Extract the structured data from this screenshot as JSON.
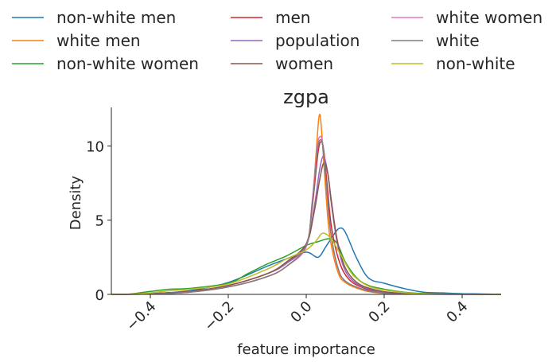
{
  "chart_data": {
    "type": "line",
    "title": "zgpa",
    "xlabel": "feature importance",
    "ylabel": "Density",
    "xlim": [
      -0.5,
      0.5
    ],
    "ylim": [
      0,
      12.6
    ],
    "x_ticks": [
      {
        "value": -0.4,
        "label": "−0.4"
      },
      {
        "value": -0.2,
        "label": "−0.2"
      },
      {
        "value": 0.0,
        "label": "0.0"
      },
      {
        "value": 0.2,
        "label": "0.2"
      },
      {
        "value": 0.4,
        "label": "0.4"
      }
    ],
    "y_ticks": [
      {
        "value": 0,
        "label": "0"
      },
      {
        "value": 5,
        "label": "5"
      },
      {
        "value": 10,
        "label": "10"
      }
    ],
    "x_tick_rotation": 45,
    "legend_position": "top",
    "legend_columns": 3,
    "grid": false,
    "series": [
      {
        "name": "non-white men",
        "color": "#1f77b4",
        "points": [
          [
            -0.5,
            0
          ],
          [
            -0.4,
            0.05
          ],
          [
            -0.3,
            0.25
          ],
          [
            -0.2,
            0.8
          ],
          [
            -0.1,
            1.9
          ],
          [
            -0.05,
            2.4
          ],
          [
            0.0,
            2.85
          ],
          [
            0.03,
            2.5
          ],
          [
            0.05,
            3.2
          ],
          [
            0.07,
            4.0
          ],
          [
            0.085,
            4.45
          ],
          [
            0.1,
            4.2
          ],
          [
            0.13,
            2.4
          ],
          [
            0.16,
            1.1
          ],
          [
            0.2,
            0.75
          ],
          [
            0.25,
            0.4
          ],
          [
            0.3,
            0.15
          ],
          [
            0.35,
            0.1
          ],
          [
            0.4,
            0.05
          ],
          [
            0.45,
            0.03
          ],
          [
            0.5,
            0
          ]
        ]
      },
      {
        "name": "white men",
        "color": "#ff7f0e",
        "points": [
          [
            -0.5,
            0
          ],
          [
            -0.4,
            0.03
          ],
          [
            -0.3,
            0.15
          ],
          [
            -0.2,
            0.5
          ],
          [
            -0.1,
            1.2
          ],
          [
            -0.05,
            1.9
          ],
          [
            0.0,
            3.3
          ],
          [
            0.015,
            6.0
          ],
          [
            0.028,
            10.5
          ],
          [
            0.033,
            12.0
          ],
          [
            0.038,
            11.5
          ],
          [
            0.05,
            7.0
          ],
          [
            0.06,
            4.0
          ],
          [
            0.08,
            1.6
          ],
          [
            0.1,
            0.8
          ],
          [
            0.15,
            0.25
          ],
          [
            0.2,
            0.07
          ],
          [
            0.25,
            0.02
          ],
          [
            0.5,
            0
          ]
        ]
      },
      {
        "name": "non-white women",
        "color": "#2ca02c",
        "points": [
          [
            -0.5,
            0
          ],
          [
            -0.45,
            0.03
          ],
          [
            -0.4,
            0.2
          ],
          [
            -0.35,
            0.35
          ],
          [
            -0.3,
            0.4
          ],
          [
            -0.2,
            0.75
          ],
          [
            -0.15,
            1.4
          ],
          [
            -0.1,
            2.05
          ],
          [
            -0.05,
            2.6
          ],
          [
            0.0,
            3.3
          ],
          [
            0.03,
            3.55
          ],
          [
            0.06,
            3.75
          ],
          [
            0.08,
            3.4
          ],
          [
            0.1,
            2.2
          ],
          [
            0.13,
            1.1
          ],
          [
            0.16,
            0.6
          ],
          [
            0.2,
            0.35
          ],
          [
            0.25,
            0.15
          ],
          [
            0.3,
            0.06
          ],
          [
            0.4,
            0.02
          ],
          [
            0.5,
            0
          ]
        ]
      },
      {
        "name": "men",
        "color": "#d62728",
        "points": [
          [
            -0.5,
            0
          ],
          [
            -0.4,
            0.05
          ],
          [
            -0.3,
            0.2
          ],
          [
            -0.2,
            0.6
          ],
          [
            -0.1,
            1.4
          ],
          [
            -0.05,
            2.1
          ],
          [
            0.0,
            3.4
          ],
          [
            0.015,
            5.8
          ],
          [
            0.03,
            9.5
          ],
          [
            0.038,
            10.3
          ],
          [
            0.045,
            9.7
          ],
          [
            0.055,
            7.0
          ],
          [
            0.065,
            4.5
          ],
          [
            0.085,
            2.2
          ],
          [
            0.11,
            1.0
          ],
          [
            0.15,
            0.4
          ],
          [
            0.2,
            0.12
          ],
          [
            0.25,
            0.04
          ],
          [
            0.5,
            0
          ]
        ]
      },
      {
        "name": "population",
        "color": "#9467bd",
        "points": [
          [
            -0.5,
            0
          ],
          [
            -0.4,
            0.05
          ],
          [
            -0.3,
            0.2
          ],
          [
            -0.2,
            0.6
          ],
          [
            -0.1,
            1.4
          ],
          [
            -0.05,
            2.1
          ],
          [
            0.0,
            3.3
          ],
          [
            0.02,
            5.8
          ],
          [
            0.035,
            8.5
          ],
          [
            0.045,
            9.3
          ],
          [
            0.055,
            8.2
          ],
          [
            0.065,
            6.0
          ],
          [
            0.08,
            3.4
          ],
          [
            0.1,
            1.6
          ],
          [
            0.13,
            0.7
          ],
          [
            0.17,
            0.3
          ],
          [
            0.22,
            0.1
          ],
          [
            0.3,
            0.03
          ],
          [
            0.5,
            0
          ]
        ]
      },
      {
        "name": "women",
        "color": "#8c564b",
        "points": [
          [
            -0.5,
            0
          ],
          [
            -0.4,
            0.05
          ],
          [
            -0.3,
            0.2
          ],
          [
            -0.2,
            0.6
          ],
          [
            -0.1,
            1.4
          ],
          [
            -0.05,
            2.2
          ],
          [
            0.0,
            3.4
          ],
          [
            0.02,
            5.5
          ],
          [
            0.035,
            7.8
          ],
          [
            0.045,
            8.85
          ],
          [
            0.055,
            8.2
          ],
          [
            0.065,
            6.2
          ],
          [
            0.08,
            3.6
          ],
          [
            0.1,
            1.8
          ],
          [
            0.13,
            0.8
          ],
          [
            0.17,
            0.35
          ],
          [
            0.22,
            0.12
          ],
          [
            0.3,
            0.03
          ],
          [
            0.5,
            0
          ]
        ]
      },
      {
        "name": "white women",
        "color": "#e377c2",
        "points": [
          [
            -0.5,
            0
          ],
          [
            -0.4,
            0.03
          ],
          [
            -0.3,
            0.15
          ],
          [
            -0.2,
            0.5
          ],
          [
            -0.1,
            1.2
          ],
          [
            -0.05,
            1.9
          ],
          [
            0.0,
            3.2
          ],
          [
            0.015,
            6.2
          ],
          [
            0.028,
            9.8
          ],
          [
            0.034,
            10.6
          ],
          [
            0.042,
            10.2
          ],
          [
            0.052,
            7.2
          ],
          [
            0.062,
            4.3
          ],
          [
            0.08,
            1.9
          ],
          [
            0.1,
            0.9
          ],
          [
            0.15,
            0.3
          ],
          [
            0.2,
            0.08
          ],
          [
            0.25,
            0.02
          ],
          [
            0.5,
            0
          ]
        ]
      },
      {
        "name": "white",
        "color": "#7f7f7f",
        "points": [
          [
            -0.5,
            0
          ],
          [
            -0.4,
            0.03
          ],
          [
            -0.3,
            0.15
          ],
          [
            -0.2,
            0.5
          ],
          [
            -0.1,
            1.2
          ],
          [
            -0.05,
            1.9
          ],
          [
            0.0,
            3.3
          ],
          [
            0.015,
            6.0
          ],
          [
            0.028,
            9.5
          ],
          [
            0.035,
            10.4
          ],
          [
            0.043,
            9.9
          ],
          [
            0.053,
            7.0
          ],
          [
            0.063,
            4.2
          ],
          [
            0.08,
            1.9
          ],
          [
            0.1,
            0.9
          ],
          [
            0.15,
            0.3
          ],
          [
            0.2,
            0.08
          ],
          [
            0.25,
            0.02
          ],
          [
            0.5,
            0
          ]
        ]
      },
      {
        "name": "non-white",
        "color": "#bcbd22",
        "points": [
          [
            -0.5,
            0
          ],
          [
            -0.45,
            0.02
          ],
          [
            -0.4,
            0.1
          ],
          [
            -0.35,
            0.25
          ],
          [
            -0.3,
            0.35
          ],
          [
            -0.2,
            0.7
          ],
          [
            -0.1,
            1.7
          ],
          [
            -0.05,
            2.4
          ],
          [
            0.0,
            3.0
          ],
          [
            0.025,
            3.6
          ],
          [
            0.04,
            4.1
          ],
          [
            0.055,
            4.0
          ],
          [
            0.07,
            3.5
          ],
          [
            0.09,
            2.6
          ],
          [
            0.12,
            1.3
          ],
          [
            0.16,
            0.55
          ],
          [
            0.2,
            0.3
          ],
          [
            0.25,
            0.12
          ],
          [
            0.3,
            0.04
          ],
          [
            0.4,
            0.01
          ],
          [
            0.5,
            0
          ]
        ]
      }
    ]
  }
}
